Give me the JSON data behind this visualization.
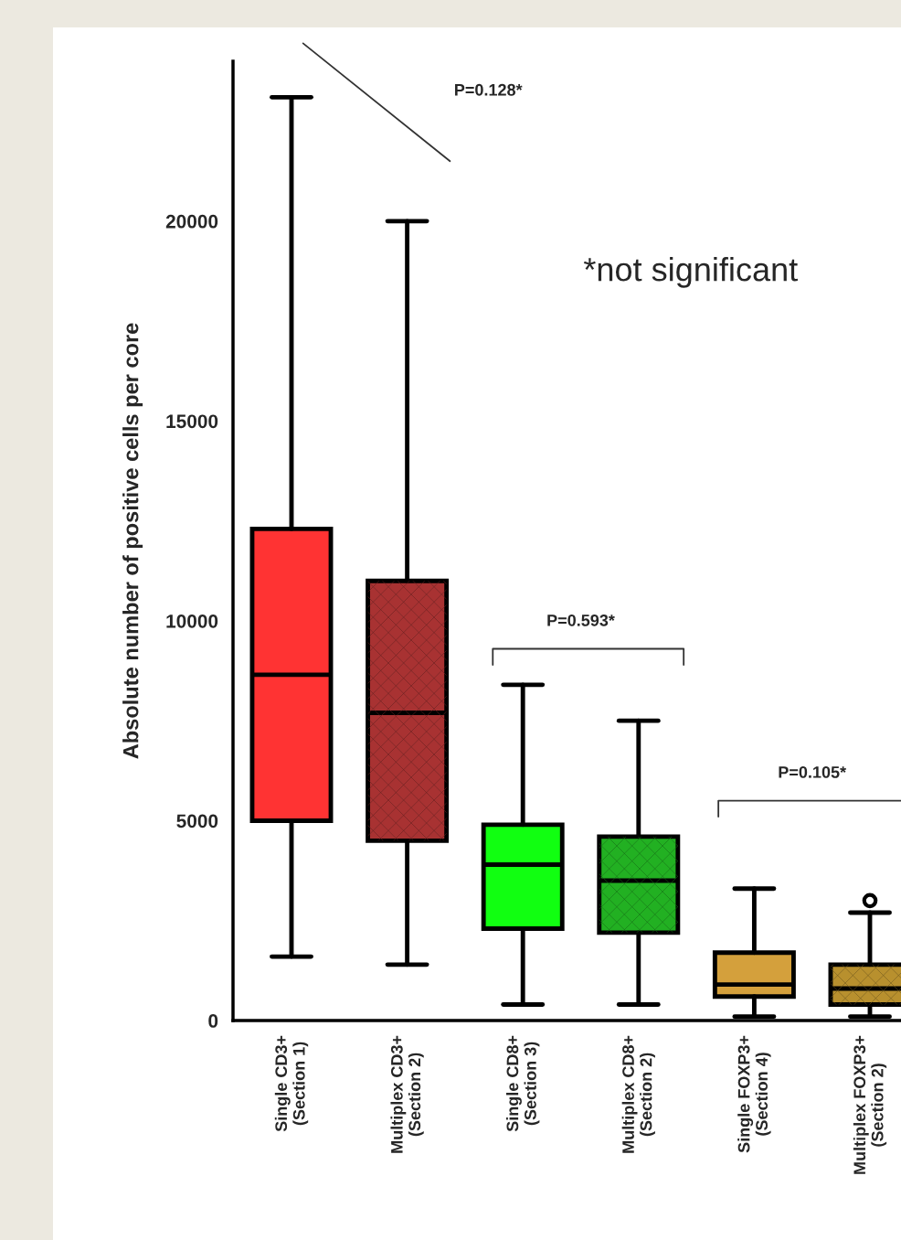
{
  "chart_data": {
    "type": "box",
    "ylabel": "Absolute number of positive cells per core",
    "categories": [
      "Single CD3+\n(Section 1)",
      "Multiplex CD3+\n(Section 2)",
      "Single CD8+\n(Section 3)",
      "Multiplex CD8+\n(Section 2)",
      "Single FOXP3+\n(Section 4)",
      "Multiplex FOXP3+\n(Section 2)"
    ],
    "colors": [
      "#ff3333",
      "#a83232",
      "#11ff11",
      "#22b022",
      "#d4a03c",
      "#b8902e"
    ],
    "boxes": [
      {
        "low": 1600,
        "q1": 5000,
        "median": 8650,
        "q3": 12300,
        "high": 23100
      },
      {
        "low": 1400,
        "q1": 4500,
        "median": 7700,
        "q3": 11000,
        "high": 20000
      },
      {
        "low": 400,
        "q1": 2300,
        "median": 3900,
        "q3": 4900,
        "high": 8400
      },
      {
        "low": 400,
        "q1": 2200,
        "median": 3500,
        "q3": 4600,
        "high": 7500
      },
      {
        "low": 100,
        "q1": 600,
        "median": 900,
        "q3": 1700,
        "high": 3300
      },
      {
        "low": 100,
        "q1": 400,
        "median": 800,
        "q3": 1400,
        "high": 2700,
        "outliers": [
          3000
        ]
      }
    ],
    "ylim": [
      0,
      24000
    ],
    "yticks": [
      0,
      5000,
      10000,
      15000,
      20000
    ],
    "grid": false,
    "legend": false,
    "annotations": [
      "P=0.128*",
      "P=0.593*",
      "P=0.105*",
      "*not significant"
    ]
  }
}
